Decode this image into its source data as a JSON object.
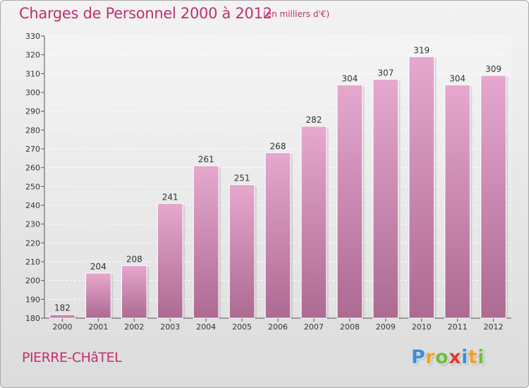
{
  "header": {
    "title": "Charges de Personnel 2000 à 2012",
    "unit_note": "(en milliers d'€)"
  },
  "footer": {
    "town": "PIERRE-CHâTEL",
    "brand_letters": [
      {
        "ch": "P",
        "color": "#3a8fd6"
      },
      {
        "ch": "r",
        "color": "#f0a020"
      },
      {
        "ch": "o",
        "color": "#6cbf3a"
      },
      {
        "ch": "x",
        "color": "#e03a2e"
      },
      {
        "ch": "i",
        "color": "#3a8fd6"
      },
      {
        "ch": "t",
        "color": "#f0a020"
      },
      {
        "ch": "i",
        "color": "#6cbf3a"
      }
    ]
  },
  "colors": {
    "accent": "#c0306e",
    "bar_top": "#e6a8cd",
    "bar_bottom": "#ad6a92"
  },
  "chart_data": {
    "type": "bar",
    "title": "Charges de Personnel 2000 à 2012",
    "subtitle": "(en milliers d'€)",
    "xlabel": "",
    "ylabel": "",
    "categories": [
      "2000",
      "2001",
      "2002",
      "2003",
      "2004",
      "2005",
      "2006",
      "2007",
      "2008",
      "2009",
      "2010",
      "2011",
      "2012"
    ],
    "values": [
      182,
      204,
      208,
      241,
      261,
      251,
      268,
      282,
      304,
      307,
      319,
      304,
      309
    ],
    "ylim": [
      180,
      330
    ],
    "yticks": [
      180,
      190,
      200,
      210,
      220,
      230,
      240,
      250,
      260,
      270,
      280,
      290,
      300,
      310,
      320,
      330
    ],
    "grid": true,
    "data_labels": true
  }
}
